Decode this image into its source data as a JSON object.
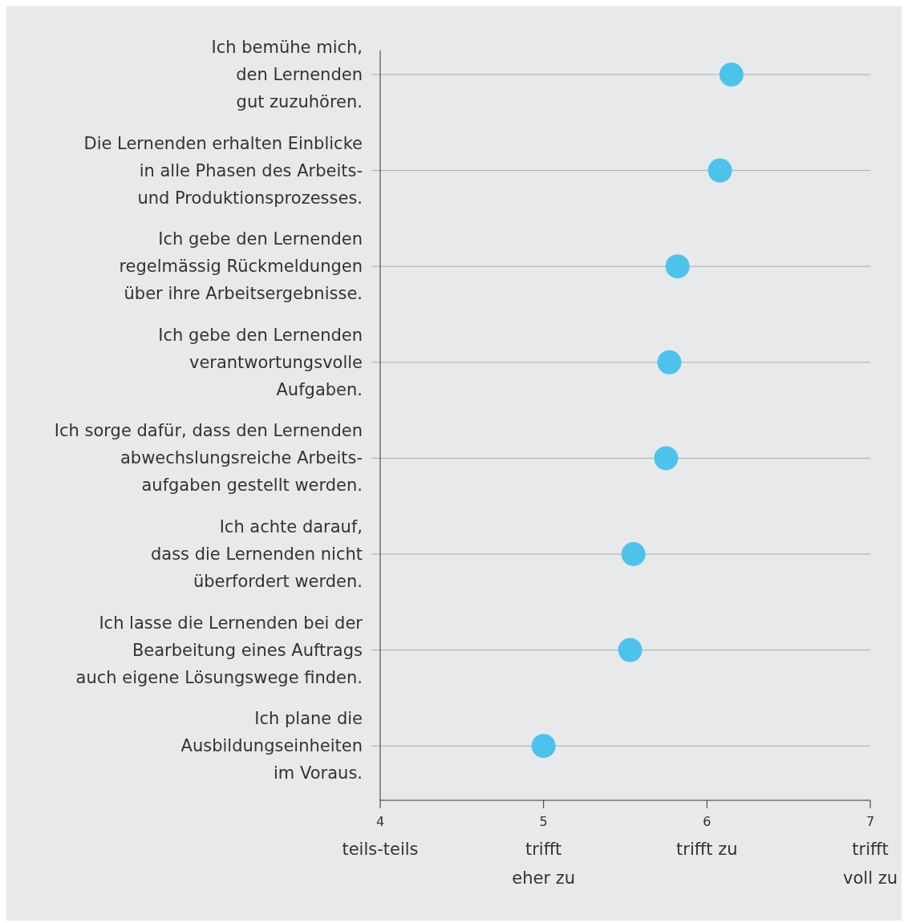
{
  "chart_data": {
    "type": "scatter",
    "orientation": "horizontal",
    "categories": [
      "Ich bemühe mich,\nden Lernenden\ngut zuzuhören.",
      "Die Lernenden erhalten Einblicke\nin alle Phasen des Arbeits-\nund Produktionsprozesses.",
      "Ich gebe den Lernenden\nregelmässig Rückmeldungen\nüber ihre Arbeitsergebnisse.",
      "Ich gebe den Lernenden\nverantwortungsvolle\nAufgaben.",
      "Ich sorge dafür, dass den Lernenden\nabwechslungsreiche Arbeits-\naufgaben gestellt werden.",
      "Ich achte darauf,\ndass die Lernenden nicht\nüberfordert werden.",
      "Ich lasse die Lernenden bei der\nBearbeitung eines Auftrags\nauch eigene Lösungswege finden.",
      "Ich plane die\nAusbildungseinheiten\nim Voraus."
    ],
    "values": [
      6.15,
      6.08,
      5.82,
      5.77,
      5.75,
      5.55,
      5.53,
      5.0
    ],
    "color": "#4dc3ec",
    "marker": "circle",
    "grid": "y",
    "xlim": [
      4,
      7
    ],
    "xticks": [
      {
        "value": 4,
        "label": "4\nteils-teils"
      },
      {
        "value": 5,
        "label": "5\ntrifft\neher zu"
      },
      {
        "value": 6,
        "label": "6\ntrifft zu"
      },
      {
        "value": 7,
        "label": "7\ntrifft\nvoll zu"
      }
    ]
  }
}
